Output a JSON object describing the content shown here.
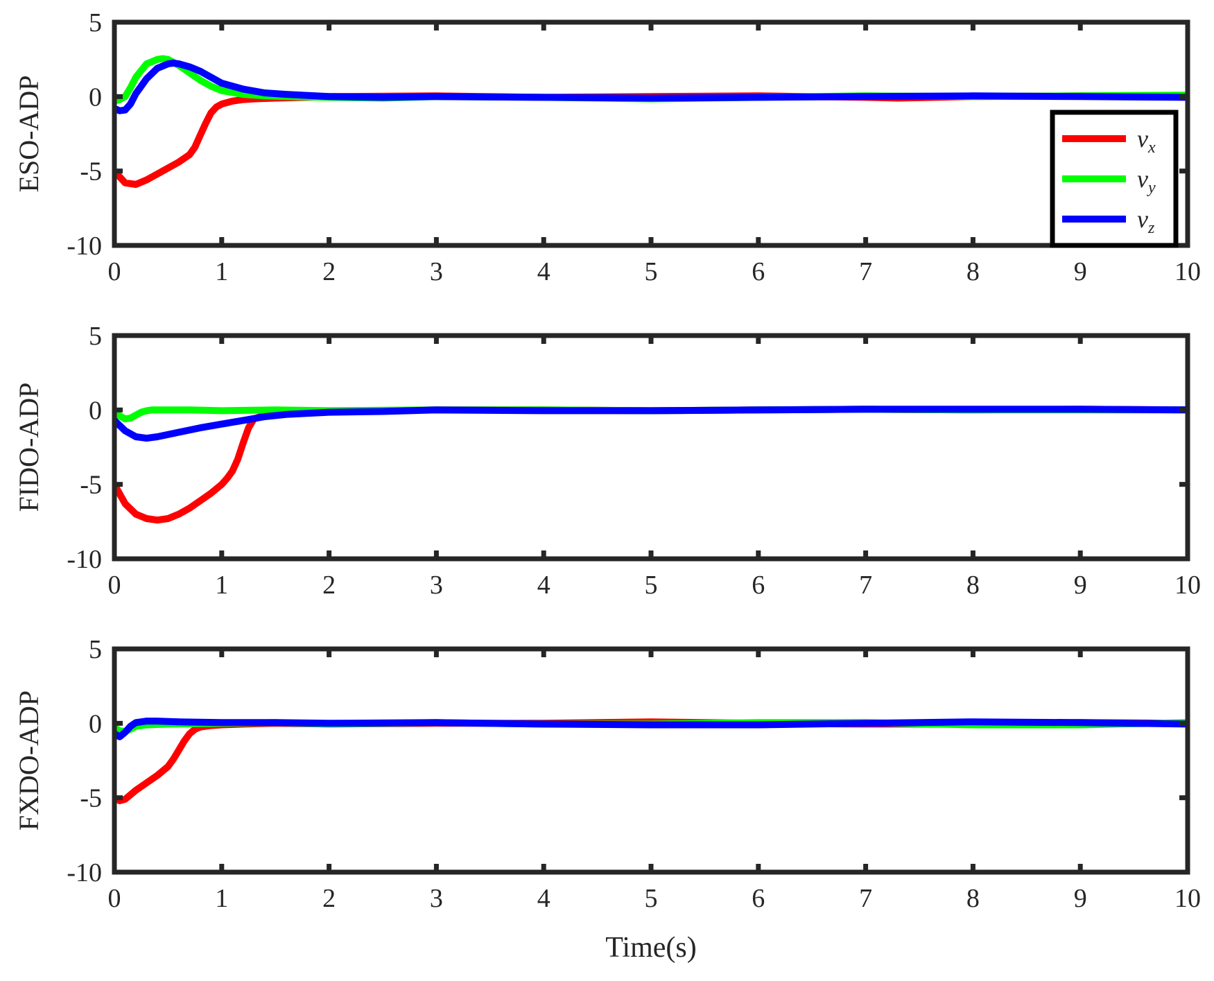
{
  "chart_data": {
    "type": "line",
    "xlabel": "Time(s)",
    "x_ticks": [
      "0",
      "1",
      "2",
      "3",
      "4",
      "5",
      "6",
      "7",
      "8",
      "9",
      "10"
    ],
    "y_ticks": [
      "5",
      "0",
      "-5",
      "-10"
    ],
    "xlim": [
      0,
      10
    ],
    "ylim": [
      -10,
      5
    ],
    "grid": false,
    "legend": {
      "placement": "right, inside top panel",
      "entries": [
        {
          "base": "v",
          "sub": "x",
          "color": "#ff0000"
        },
        {
          "base": "v",
          "sub": "y",
          "color": "#00ff00"
        },
        {
          "base": "v",
          "sub": "z",
          "color": "#0000ff"
        }
      ]
    },
    "panels": [
      {
        "ylabel": "ESO-ADP",
        "series": [
          {
            "color": "#ff0000",
            "x": [
              0,
              0.1,
              0.2,
              0.3,
              0.4,
              0.5,
              0.6,
              0.7,
              0.75,
              0.8,
              0.85,
              0.9,
              0.95,
              1.0,
              1.1,
              1.2,
              1.3,
              1.5,
              1.8,
              2,
              3,
              4,
              5,
              6,
              7,
              7.3,
              8,
              9,
              10
            ],
            "y": [
              -5.0,
              -5.8,
              -5.9,
              -5.6,
              -5.2,
              -4.8,
              -4.4,
              -3.9,
              -3.4,
              -2.6,
              -1.8,
              -1.1,
              -0.7,
              -0.5,
              -0.3,
              -0.2,
              -0.15,
              -0.1,
              -0.05,
              0.0,
              0.05,
              -0.05,
              0.0,
              0.05,
              -0.05,
              -0.1,
              0.0,
              0.05,
              0.0
            ]
          },
          {
            "color": "#00ff00",
            "x": [
              0,
              0.05,
              0.1,
              0.15,
              0.2,
              0.3,
              0.4,
              0.45,
              0.5,
              0.6,
              0.7,
              0.8,
              0.9,
              1.0,
              1.2,
              1.4,
              1.6,
              2,
              2.5,
              3,
              4,
              5,
              6,
              7,
              8,
              9,
              10
            ],
            "y": [
              -0.3,
              -0.2,
              0.0,
              0.6,
              1.3,
              2.2,
              2.5,
              2.55,
              2.5,
              2.1,
              1.6,
              1.1,
              0.7,
              0.4,
              0.15,
              0.05,
              0.0,
              -0.05,
              -0.1,
              0.0,
              -0.05,
              -0.15,
              -0.05,
              0.05,
              0.0,
              0.05,
              0.1
            ]
          },
          {
            "color": "#0000ff",
            "x": [
              0,
              0.05,
              0.1,
              0.15,
              0.2,
              0.3,
              0.4,
              0.5,
              0.55,
              0.6,
              0.7,
              0.8,
              0.9,
              1.0,
              1.2,
              1.4,
              1.6,
              2,
              2.5,
              3,
              4,
              5,
              6,
              7,
              8,
              9,
              10
            ],
            "y": [
              -0.8,
              -0.95,
              -0.9,
              -0.5,
              0.2,
              1.2,
              1.9,
              2.2,
              2.25,
              2.2,
              2.0,
              1.7,
              1.3,
              0.9,
              0.5,
              0.25,
              0.15,
              0.0,
              -0.05,
              0.0,
              -0.05,
              -0.1,
              -0.05,
              0.0,
              0.05,
              0.0,
              -0.05
            ]
          }
        ]
      },
      {
        "ylabel": "FIDO-ADP",
        "series": [
          {
            "color": "#ff0000",
            "x": [
              0,
              0.1,
              0.2,
              0.3,
              0.4,
              0.5,
              0.6,
              0.7,
              0.8,
              0.9,
              1.0,
              1.05,
              1.1,
              1.15,
              1.2,
              1.25,
              1.3,
              1.4,
              1.6,
              2,
              3,
              4,
              5,
              6,
              7,
              8,
              9,
              10
            ],
            "y": [
              -5.0,
              -6.3,
              -7.0,
              -7.3,
              -7.4,
              -7.3,
              -7.0,
              -6.6,
              -6.1,
              -5.6,
              -5.0,
              -4.6,
              -4.1,
              -3.3,
              -2.2,
              -1.2,
              -0.6,
              -0.35,
              -0.2,
              -0.1,
              0.0,
              0.0,
              -0.05,
              0.0,
              0.05,
              0.0,
              0.05,
              0.0
            ]
          },
          {
            "color": "#00ff00",
            "x": [
              0,
              0.05,
              0.1,
              0.15,
              0.2,
              0.25,
              0.3,
              0.35,
              0.4,
              0.5,
              0.7,
              1,
              1.5,
              2,
              3,
              4,
              5,
              6,
              7,
              8,
              9,
              10
            ],
            "y": [
              -0.2,
              -0.4,
              -0.6,
              -0.55,
              -0.35,
              -0.15,
              -0.05,
              0.0,
              0.0,
              0.0,
              0.0,
              -0.05,
              0.0,
              -0.05,
              0.0,
              0.0,
              -0.05,
              0.0,
              0.05,
              0.0,
              0.0,
              0.0
            ]
          },
          {
            "color": "#0000ff",
            "x": [
              0,
              0.1,
              0.2,
              0.3,
              0.4,
              0.6,
              0.8,
              1.0,
              1.2,
              1.4,
              1.6,
              2,
              2.5,
              3,
              4,
              5,
              6,
              7,
              8,
              9,
              10
            ],
            "y": [
              -0.7,
              -1.4,
              -1.8,
              -1.9,
              -1.8,
              -1.5,
              -1.2,
              -0.95,
              -0.7,
              -0.45,
              -0.3,
              -0.15,
              -0.1,
              0.0,
              -0.05,
              -0.05,
              0.0,
              0.05,
              0.05,
              0.05,
              0.0
            ]
          }
        ]
      },
      {
        "ylabel": "FXDO-ADP",
        "series": [
          {
            "color": "#ff0000",
            "x": [
              0,
              0.05,
              0.1,
              0.15,
              0.2,
              0.3,
              0.4,
              0.5,
              0.55,
              0.6,
              0.65,
              0.7,
              0.75,
              0.8,
              0.9,
              1.0,
              1.2,
              1.5,
              2,
              3,
              4,
              5,
              6,
              7,
              8,
              9,
              10
            ],
            "y": [
              -5.0,
              -5.2,
              -5.1,
              -4.8,
              -4.5,
              -4.0,
              -3.5,
              -2.9,
              -2.4,
              -1.8,
              -1.2,
              -0.7,
              -0.4,
              -0.25,
              -0.15,
              -0.1,
              -0.05,
              0.0,
              -0.05,
              0.0,
              0.0,
              0.1,
              0.0,
              -0.05,
              -0.05,
              0.05,
              0.0
            ]
          },
          {
            "color": "#00ff00",
            "x": [
              0,
              0.05,
              0.1,
              0.15,
              0.2,
              0.3,
              0.5,
              1,
              1.5,
              2,
              3,
              4,
              5,
              6,
              7,
              8,
              9,
              10
            ],
            "y": [
              -0.3,
              -0.5,
              -0.55,
              -0.4,
              -0.2,
              -0.1,
              -0.05,
              0.0,
              0.05,
              -0.05,
              0.05,
              -0.05,
              -0.05,
              0.05,
              0.05,
              -0.1,
              -0.1,
              0.05
            ]
          },
          {
            "color": "#0000ff",
            "x": [
              0,
              0.05,
              0.1,
              0.15,
              0.2,
              0.3,
              0.4,
              0.6,
              1,
              1.5,
              2,
              3,
              4,
              5,
              6,
              7,
              8,
              9,
              10
            ],
            "y": [
              -0.7,
              -0.9,
              -0.6,
              -0.2,
              0.05,
              0.15,
              0.15,
              0.1,
              0.05,
              0.05,
              0.0,
              0.05,
              -0.05,
              -0.1,
              -0.1,
              0.0,
              0.1,
              0.05,
              -0.05
            ]
          }
        ]
      }
    ]
  }
}
